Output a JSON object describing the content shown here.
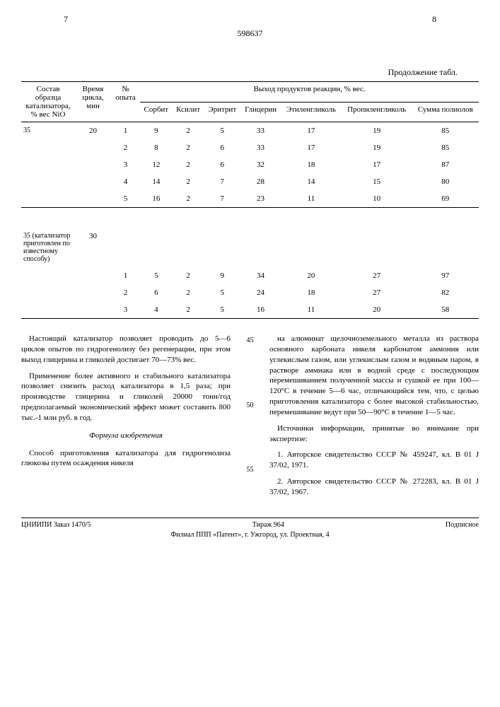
{
  "page_left": "7",
  "page_right": "8",
  "doc_number": "598637",
  "table_continuation": "Продолжение табл.",
  "headers": {
    "col1": "Состав образца катализатора, % вес NiO",
    "col2": "Время цикла, мин",
    "col3": "№ опыта",
    "group": "Выход продуктов реакции, % вес.",
    "c4": "Сорбит",
    "c5": "Ксилит",
    "c6": "Эритрит",
    "c7": "Глицерин",
    "c8": "Этиленгликоль",
    "c9": "Пропиленгликоль",
    "c10": "Сумма полиолов"
  },
  "block1_label": "35",
  "block1_time": "20",
  "rows1": [
    [
      "1",
      "9",
      "2",
      "5",
      "33",
      "17",
      "19",
      "85"
    ],
    [
      "2",
      "8",
      "2",
      "6",
      "33",
      "17",
      "19",
      "85"
    ],
    [
      "3",
      "12",
      "2",
      "6",
      "32",
      "18",
      "17",
      "87"
    ],
    [
      "4",
      "14",
      "2",
      "7",
      "28",
      "14",
      "15",
      "80"
    ],
    [
      "5",
      "16",
      "2",
      "7",
      "23",
      "11",
      "10",
      "69"
    ]
  ],
  "block2_label": "35 (катализатор приготовлен по известному способу)",
  "block2_time": "30",
  "rows2": [
    [
      "1",
      "5",
      "2",
      "9",
      "34",
      "20",
      "27",
      "97"
    ],
    [
      "2",
      "6",
      "2",
      "5",
      "24",
      "18",
      "27",
      "82"
    ],
    [
      "3",
      "4",
      "2",
      "5",
      "16",
      "11",
      "20",
      "58"
    ]
  ],
  "text": {
    "p1": "Настоящий катализатор позволяет проводить до 5—6 циклов опытов по гидрогенолизу без регенерации, при этом выход глицерина и гликолей достигает 70—73% вес.",
    "p2": "Применение более активного и стабильного катализатора позволяет снизить расход катализатора в 1,5 раза; при производстве глицерина и гликолей 20000 тонн/год предполагаемый экономический эффект может составить 800 тыс.-1 млн руб. в год.",
    "formula_title": "Формула изобретения",
    "p3": "Способ приготовления катализатора для гидрогенолиза глюкозы путем осаждения никеля",
    "p4": "на алюминат щелочноземельного металла из раствора основного карбоната никеля карбонатом аммония или углекислым газом, или углекислым газом и водяным паром, в растворе аммиака или в водной среде с последующим перемешиванием полученной массы и сушкой ее при 100—120°C в течение 5—6 час, отличающийся тем, что, с целью приготовления катализатора с более высокой стабильностью, перемешивание ведут при 50—90°C в течение 1—5 час.",
    "sources_title": "Источники информации, принятые во внимание при экспертизе:",
    "s1": "1. Авторское свидетельство СССР № 459247, кл. B 01 J 37/02, 1971.",
    "s2": "2. Авторское свидетельство СССР № 272283, кл. B 01 J 37/02, 1967."
  },
  "line45": "45",
  "line50": "50",
  "line55": "55",
  "footer": {
    "left": "ЦНИИПИ   Заказ 1470/5",
    "mid": "Тираж 964",
    "right": "Подписное",
    "line2": "Филиал ППП «Патент», г. Ужгород, ул. Проектная, 4"
  }
}
